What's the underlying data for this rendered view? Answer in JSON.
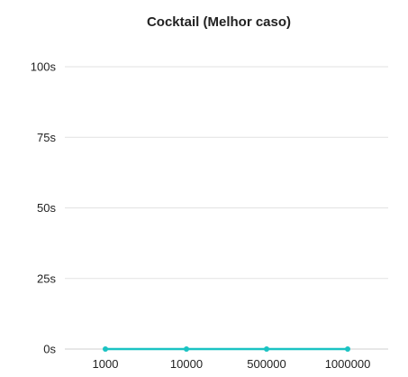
{
  "chart_data": {
    "type": "line",
    "title": "Cocktail (Melhor caso)",
    "xlabel": "",
    "ylabel": "",
    "categories": [
      "1000",
      "10000",
      "500000",
      "1000000"
    ],
    "series": [
      {
        "values": [
          0,
          0,
          0,
          0
        ],
        "color": "#1bc3c3"
      }
    ],
    "ylim": [
      0,
      100
    ],
    "yticks": [
      0,
      25,
      50,
      75,
      100
    ],
    "ytick_labels": [
      "0s",
      "25s",
      "50s",
      "75s",
      "100s"
    ],
    "grid": true,
    "legend": "none"
  },
  "colors": {
    "line": "#1bc3c3",
    "grid": "#e2e2e2",
    "axis": "#cfcfcf",
    "text": "#222222"
  }
}
